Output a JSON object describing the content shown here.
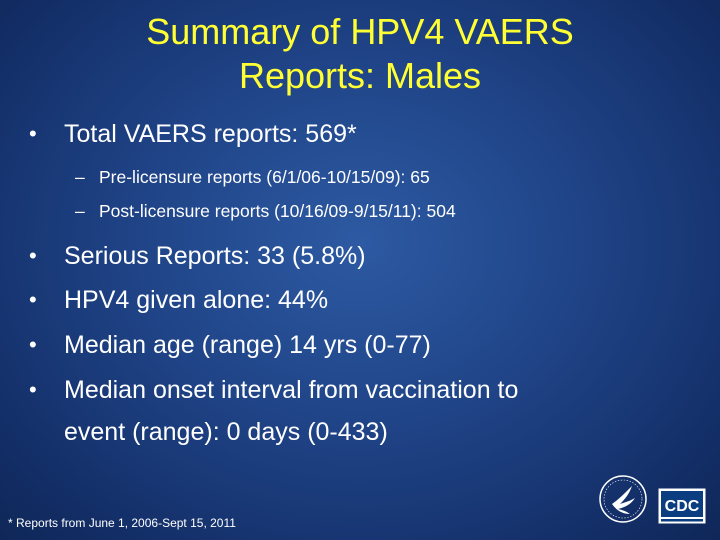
{
  "title": {
    "line1": "Summary of HPV4 VAERS",
    "line2": "Reports:  Males"
  },
  "bullets_top": [
    {
      "marker": "•",
      "text": "Total VAERS reports: 569*"
    }
  ],
  "sub_bullets": [
    {
      "marker": "–",
      "text": "Pre-licensure reports (6/1/06-10/15/09): 65"
    },
    {
      "marker": "–",
      "text": "Post-licensure reports (10/16/09-9/15/11): 504"
    }
  ],
  "bullets_main": [
    {
      "marker": "•",
      "text": "Serious Reports:  33 (5.8%)"
    },
    {
      "marker": "•",
      "text": "HPV4 given alone: 44%"
    },
    {
      "marker": "•",
      "text": "Median age (range) 14 yrs (0-77)"
    },
    {
      "marker": "•",
      "text": "Median onset interval from vaccination to",
      "continuation": "event (range): 0 days (0-433)"
    }
  ],
  "footnote": "* Reports from June 1, 2006-Sept 15, 2011",
  "logos": {
    "cdc_text": "CDC",
    "hhs_icon": "hhs-eagle-icon"
  },
  "colors": {
    "title": "#ffff33",
    "background": "#1f4386",
    "text": "#ffffff"
  }
}
